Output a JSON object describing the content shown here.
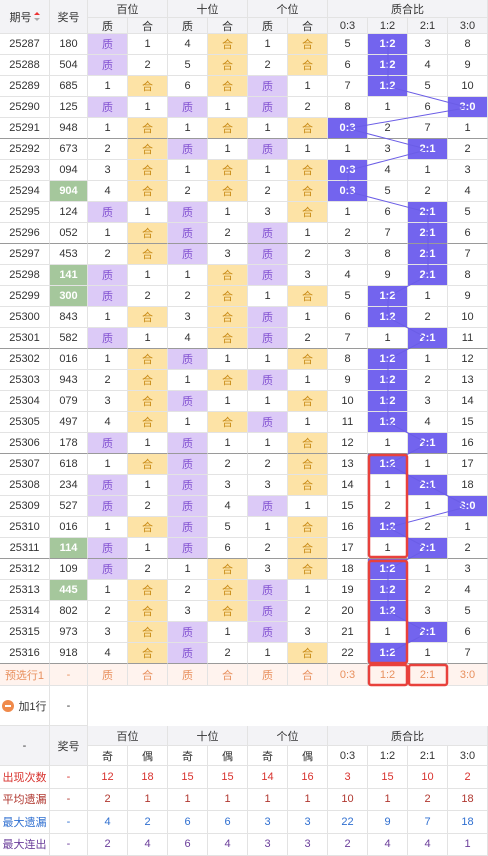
{
  "header": {
    "issue": "期号",
    "number": "奖号",
    "groups": [
      "百位",
      "十位",
      "个位",
      "质合比"
    ],
    "sub": [
      "质",
      "合",
      "质",
      "合",
      "质",
      "合",
      "0:3",
      "1:2",
      "2:1",
      "3:0"
    ]
  },
  "rows": [
    {
      "issue": "25287",
      "number": "180",
      "cells": [
        "质",
        "1",
        "4",
        "合",
        "1",
        "合",
        "5",
        "1:2",
        "3",
        "8"
      ]
    },
    {
      "issue": "25288",
      "number": "504",
      "cells": [
        "质",
        "2",
        "5",
        "合",
        "2",
        "合",
        "6",
        "1:2",
        "4",
        "9"
      ]
    },
    {
      "issue": "25289",
      "number": "685",
      "cells": [
        "1",
        "合",
        "6",
        "合",
        "质",
        "1",
        "7",
        "1:2",
        "5",
        "10"
      ]
    },
    {
      "issue": "25290",
      "number": "125",
      "cells": [
        "质",
        "1",
        "质",
        "1",
        "质",
        "2",
        "8",
        "1",
        "6",
        "3:0"
      ]
    },
    {
      "issue": "25291",
      "number": "948",
      "cells": [
        "1",
        "合",
        "1",
        "合",
        "1",
        "合",
        "0:3",
        "2",
        "7",
        "1"
      ]
    },
    {
      "issue": "25292",
      "number": "673",
      "cells": [
        "2",
        "合",
        "质",
        "1",
        "质",
        "1",
        "1",
        "3",
        "2:1",
        "2"
      ]
    },
    {
      "issue": "25293",
      "number": "094",
      "cells": [
        "3",
        "合",
        "1",
        "合",
        "1",
        "合",
        "0:3",
        "4",
        "1",
        "3"
      ]
    },
    {
      "issue": "25294",
      "number": "904",
      "marked": true,
      "cells": [
        "4",
        "合",
        "2",
        "合",
        "2",
        "合",
        "0:3",
        "5",
        "2",
        "4"
      ]
    },
    {
      "issue": "25295",
      "number": "124",
      "cells": [
        "质",
        "1",
        "质",
        "1",
        "3",
        "合",
        "1",
        "6",
        "2:1",
        "5"
      ]
    },
    {
      "issue": "25296",
      "number": "052",
      "cells": [
        "1",
        "合",
        "质",
        "2",
        "质",
        "1",
        "2",
        "7",
        "2:1",
        "6"
      ]
    },
    {
      "issue": "25297",
      "number": "453",
      "cells": [
        "2",
        "合",
        "质",
        "3",
        "质",
        "2",
        "3",
        "8",
        "2:1",
        "7"
      ]
    },
    {
      "issue": "25298",
      "number": "141",
      "marked": true,
      "cells": [
        "质",
        "1",
        "1",
        "合",
        "质",
        "3",
        "4",
        "9",
        "2:1",
        "8"
      ]
    },
    {
      "issue": "25299",
      "number": "300",
      "marked": true,
      "cells": [
        "质",
        "2",
        "2",
        "合",
        "1",
        "合",
        "5",
        "1:2",
        "1",
        "9"
      ]
    },
    {
      "issue": "25300",
      "number": "843",
      "cells": [
        "1",
        "合",
        "3",
        "合",
        "质",
        "1",
        "6",
        "1:2",
        "2",
        "10"
      ]
    },
    {
      "issue": "25301",
      "number": "582",
      "cells": [
        "质",
        "1",
        "4",
        "合",
        "质",
        "2",
        "7",
        "1",
        "2:1",
        "11"
      ]
    },
    {
      "issue": "25302",
      "number": "016",
      "cells": [
        "1",
        "合",
        "质",
        "1",
        "1",
        "合",
        "8",
        "1:2",
        "1",
        "12"
      ]
    },
    {
      "issue": "25303",
      "number": "943",
      "cells": [
        "2",
        "合",
        "1",
        "合",
        "质",
        "1",
        "9",
        "1:2",
        "2",
        "13"
      ]
    },
    {
      "issue": "25304",
      "number": "079",
      "cells": [
        "3",
        "合",
        "质",
        "1",
        "1",
        "合",
        "10",
        "1:2",
        "3",
        "14"
      ]
    },
    {
      "issue": "25305",
      "number": "497",
      "cells": [
        "4",
        "合",
        "1",
        "合",
        "质",
        "1",
        "11",
        "1:2",
        "4",
        "15"
      ]
    },
    {
      "issue": "25306",
      "number": "178",
      "cells": [
        "质",
        "1",
        "质",
        "1",
        "1",
        "合",
        "12",
        "1",
        "2:1",
        "16"
      ]
    },
    {
      "issue": "25307",
      "number": "618",
      "cells": [
        "1",
        "合",
        "质",
        "2",
        "2",
        "合",
        "13",
        "1:2",
        "1",
        "17"
      ]
    },
    {
      "issue": "25308",
      "number": "234",
      "cells": [
        "质",
        "1",
        "质",
        "3",
        "3",
        "合",
        "14",
        "1",
        "2:1",
        "18"
      ]
    },
    {
      "issue": "25309",
      "number": "527",
      "cells": [
        "质",
        "2",
        "质",
        "4",
        "质",
        "1",
        "15",
        "2",
        "1",
        "3:0"
      ]
    },
    {
      "issue": "25310",
      "number": "016",
      "cells": [
        "1",
        "合",
        "质",
        "5",
        "1",
        "合",
        "16",
        "1:2",
        "2",
        "1"
      ]
    },
    {
      "issue": "25311",
      "number": "114",
      "marked": true,
      "cells": [
        "质",
        "1",
        "质",
        "6",
        "2",
        "合",
        "17",
        "1",
        "2:1",
        "2"
      ]
    },
    {
      "issue": "25312",
      "number": "109",
      "cells": [
        "质",
        "2",
        "1",
        "合",
        "3",
        "合",
        "18",
        "1:2",
        "1",
        "3"
      ]
    },
    {
      "issue": "25313",
      "number": "445",
      "marked": true,
      "cells": [
        "1",
        "合",
        "2",
        "合",
        "质",
        "1",
        "19",
        "1:2",
        "2",
        "4"
      ]
    },
    {
      "issue": "25314",
      "number": "802",
      "cells": [
        "2",
        "合",
        "3",
        "合",
        "质",
        "2",
        "20",
        "1:2",
        "3",
        "5"
      ]
    },
    {
      "issue": "25315",
      "number": "973",
      "cells": [
        "3",
        "合",
        "质",
        "1",
        "质",
        "3",
        "21",
        "1",
        "2:1",
        "6"
      ]
    },
    {
      "issue": "25316",
      "number": "918",
      "cells": [
        "4",
        "合",
        "质",
        "2",
        "1",
        "合",
        "22",
        "1:2",
        "1",
        "7"
      ]
    }
  ],
  "preselect": {
    "label": "预选行1",
    "number": "-",
    "cells": [
      "质",
      "合",
      "质",
      "合",
      "质",
      "合",
      "0:3",
      "1:2",
      "2:1",
      "3:0"
    ]
  },
  "add_row": {
    "label": "加1行",
    "number": "-"
  },
  "footer": {
    "first": "-",
    "number": "奖号",
    "groups": [
      "百位",
      "十位",
      "个位",
      "质合比"
    ],
    "sub": [
      "奇",
      "偶",
      "奇",
      "偶",
      "奇",
      "偶",
      "0:3",
      "1:2",
      "2:1",
      "3:0"
    ]
  },
  "stats": [
    {
      "label": "出现次数",
      "number": "-",
      "color": "#d8322e",
      "values": [
        12,
        18,
        15,
        15,
        14,
        16,
        3,
        15,
        10,
        2
      ]
    },
    {
      "label": "平均遗漏",
      "number": "-",
      "color": "#b0372f",
      "values": [
        2,
        1,
        1,
        1,
        1,
        1,
        10,
        1,
        2,
        18
      ]
    },
    {
      "label": "最大遗漏",
      "number": "-",
      "color": "#2f6fd0",
      "values": [
        4,
        2,
        6,
        6,
        3,
        3,
        22,
        9,
        7,
        18
      ]
    },
    {
      "label": "最大连出",
      "number": "-",
      "color": "#6a3d9a",
      "values": [
        2,
        4,
        6,
        4,
        3,
        3,
        2,
        4,
        4,
        1
      ]
    }
  ]
}
